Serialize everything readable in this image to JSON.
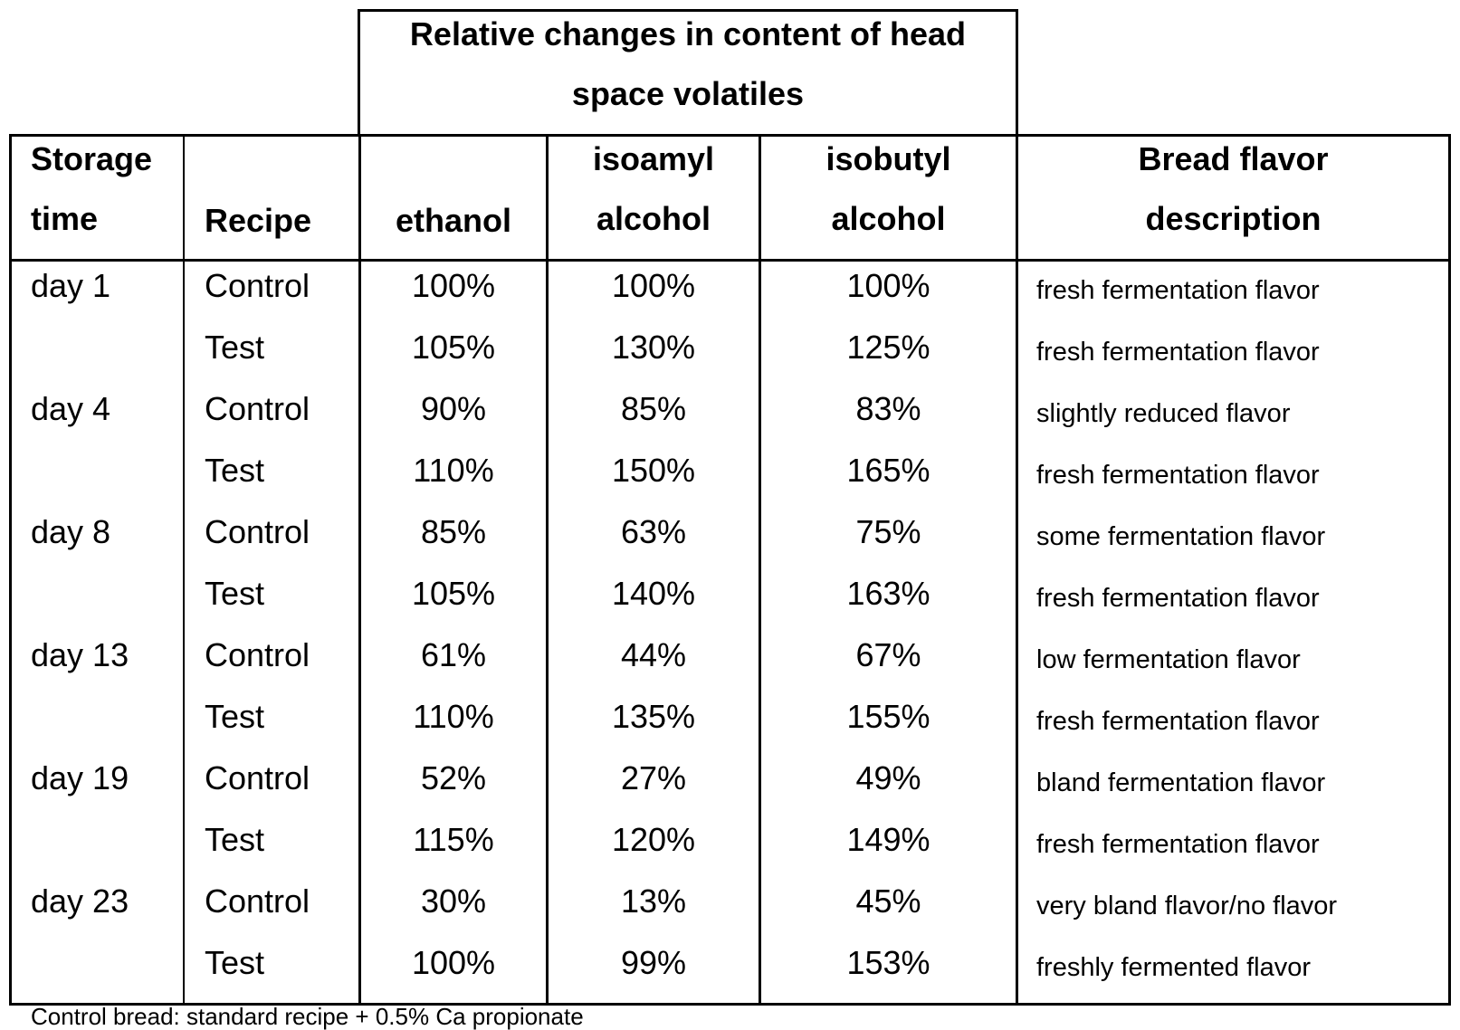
{
  "table": {
    "group_header": {
      "line1": "Relative  changes in content of head",
      "line2": "space volatiles"
    },
    "columns": {
      "storage_time": [
        "Storage",
        "time"
      ],
      "recipe": "Recipe",
      "ethanol": "ethanol",
      "isoamyl": [
        "isoamyl",
        "alcohol"
      ],
      "isobutyl": [
        "isobutyl",
        "alcohol"
      ],
      "flavor": [
        "Bread flavor",
        "description"
      ]
    },
    "rows": [
      {
        "day": "day 1",
        "recipe": "Control",
        "ethanol": "100%",
        "isoamyl": "100%",
        "isobutyl": "100%",
        "flavor": "fresh fermentation flavor"
      },
      {
        "day": "",
        "recipe": "Test",
        "ethanol": "105%",
        "isoamyl": "130%",
        "isobutyl": "125%",
        "flavor": "fresh fermentation flavor"
      },
      {
        "day": "day 4",
        "recipe": "Control",
        "ethanol": "90%",
        "isoamyl": "85%",
        "isobutyl": "83%",
        "flavor": "slightly reduced  flavor"
      },
      {
        "day": "",
        "recipe": "Test",
        "ethanol": "110%",
        "isoamyl": "150%",
        "isobutyl": "165%",
        "flavor": "fresh fermentation flavor"
      },
      {
        "day": "day 8",
        "recipe": "Control",
        "ethanol": "85%",
        "isoamyl": "63%",
        "isobutyl": "75%",
        "flavor": "some fermentation flavor"
      },
      {
        "day": "",
        "recipe": "Test",
        "ethanol": "105%",
        "isoamyl": "140%",
        "isobutyl": "163%",
        "flavor": "fresh fermentation flavor"
      },
      {
        "day": "day 13",
        "recipe": "Control",
        "ethanol": "61%",
        "isoamyl": "44%",
        "isobutyl": "67%",
        "flavor": "low fermentation flavor"
      },
      {
        "day": "",
        "recipe": "Test",
        "ethanol": "110%",
        "isoamyl": "135%",
        "isobutyl": "155%",
        "flavor": "fresh fermentation flavor"
      },
      {
        "day": "day 19",
        "recipe": "Control",
        "ethanol": "52%",
        "isoamyl": "27%",
        "isobutyl": "49%",
        "flavor": "bland fermentation flavor"
      },
      {
        "day": "",
        "recipe": "Test",
        "ethanol": "115%",
        "isoamyl": "120%",
        "isobutyl": "149%",
        "flavor": "fresh fermentation flavor"
      },
      {
        "day": "day 23",
        "recipe": "Control",
        "ethanol": "30%",
        "isoamyl": "13%",
        "isobutyl": "45%",
        "flavor": "very bland flavor/no flavor"
      },
      {
        "day": "",
        "recipe": "Test",
        "ethanol": "100%",
        "isoamyl": "99%",
        "isobutyl": "153%",
        "flavor": "freshly fermented flavor"
      }
    ]
  },
  "footnote": "Control bread: standard recipe + 0.5% Ca  propionate"
}
